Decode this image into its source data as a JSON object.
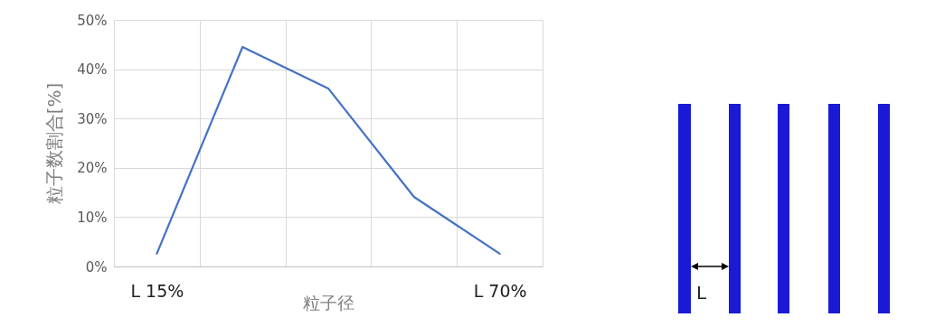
{
  "chart_data": {
    "type": "line",
    "ylabel": "粒子数割合[%]",
    "xlabel": "粒子径",
    "categories": [
      "L 15%",
      null,
      null,
      null,
      "L 70%"
    ],
    "series": [
      {
        "color": "#4472c4",
        "values": [
          2.6,
          44.5,
          36.1,
          14.1,
          2.6
        ]
      }
    ],
    "ylim": [
      0,
      50
    ],
    "yticks": [
      {
        "value": 0,
        "label": "0%"
      },
      {
        "value": 10,
        "label": "10%"
      },
      {
        "value": 20,
        "label": "20%"
      },
      {
        "value": 30,
        "label": "30%"
      },
      {
        "value": 40,
        "label": "40%"
      },
      {
        "value": 50,
        "label": "50%"
      }
    ],
    "grid": true,
    "marker": "none",
    "line_style": "solid",
    "annotations": [
      "L"
    ]
  }
}
